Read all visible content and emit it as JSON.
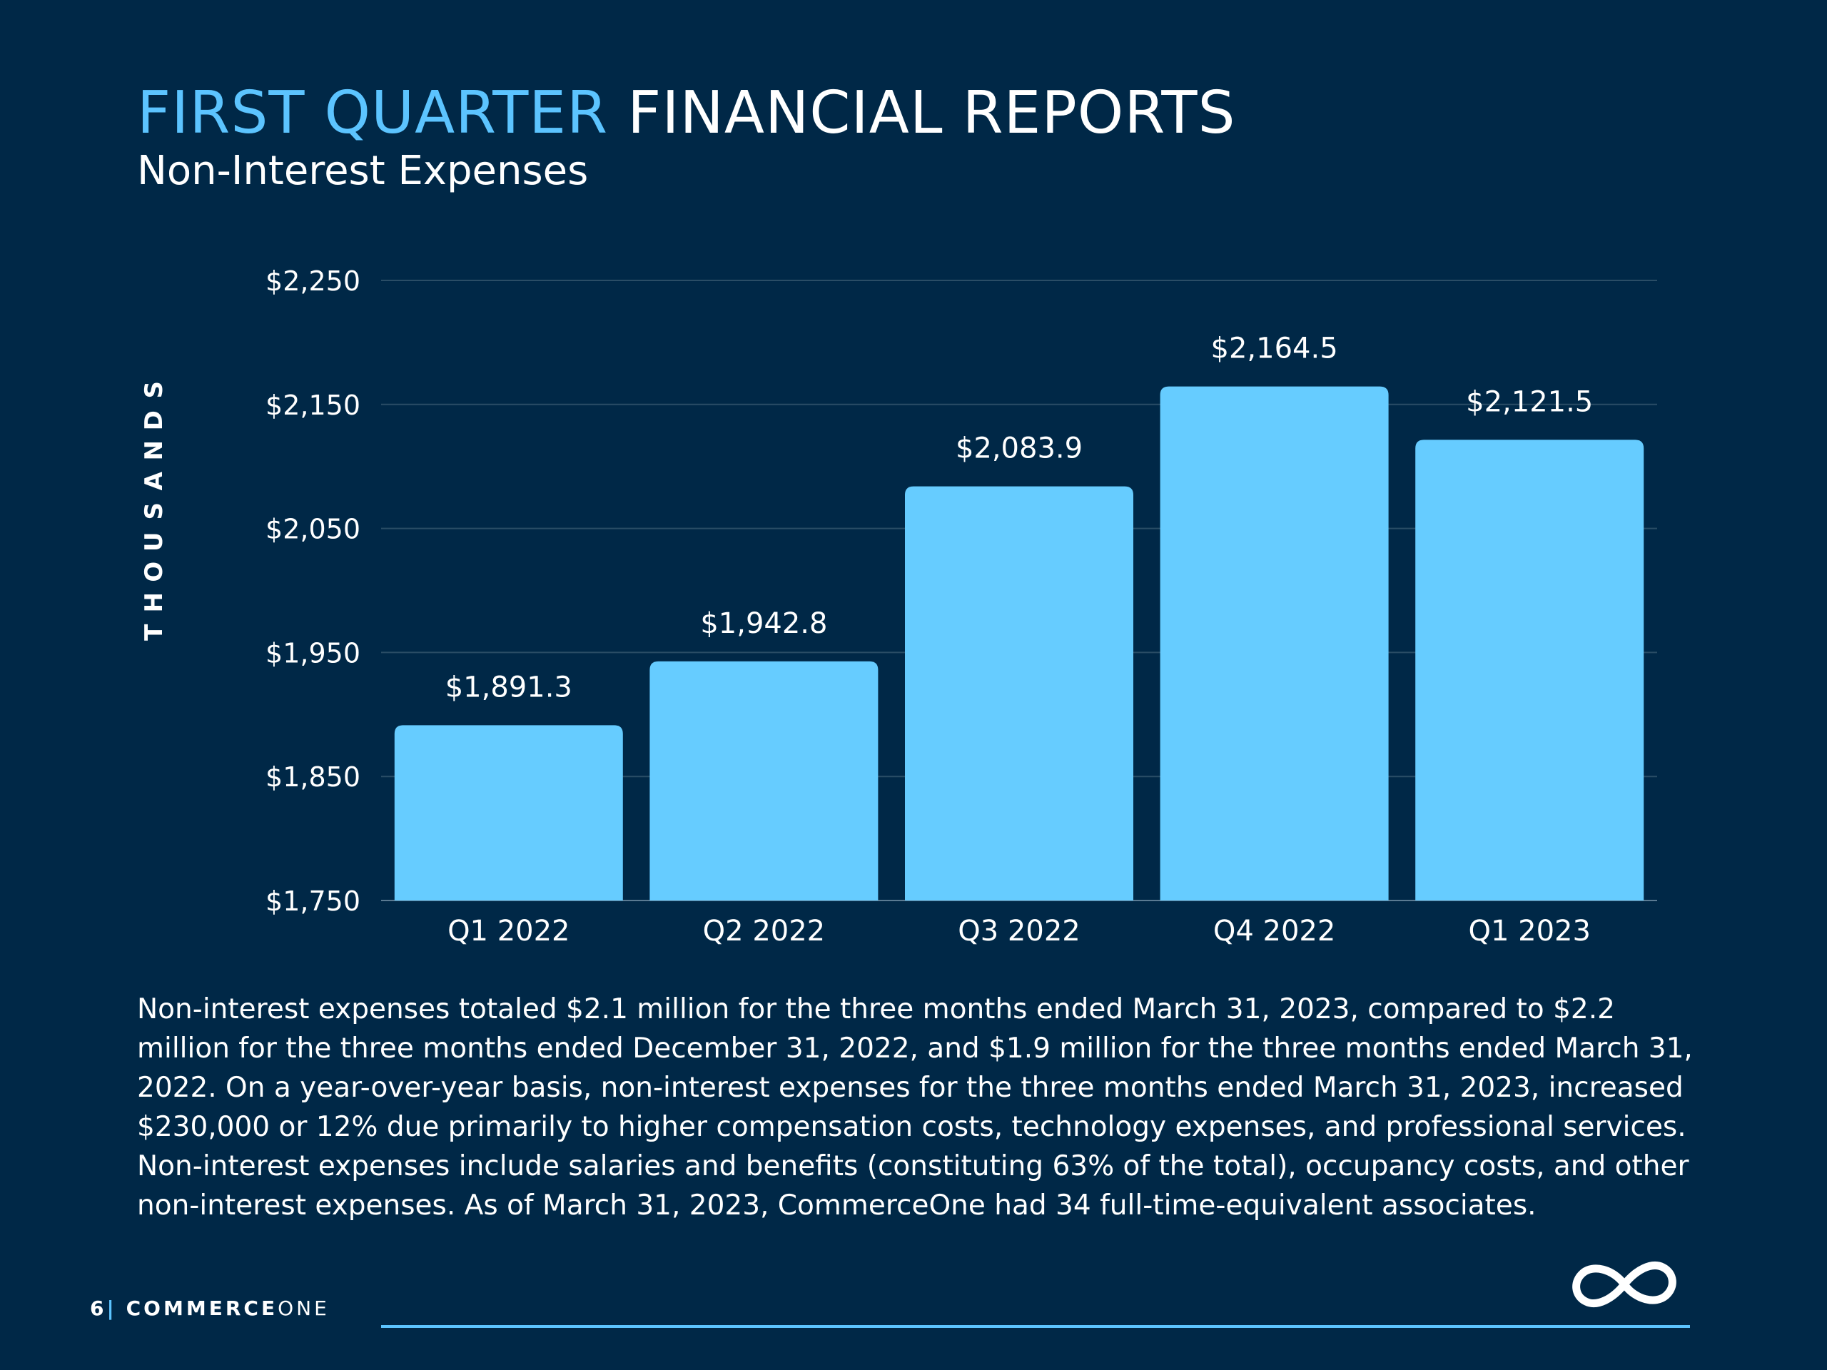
{
  "header": {
    "title_accent": "FIRST QUARTER",
    "title_main": "FINANCIAL REPORTS",
    "subtitle": "Non-Interest Expenses"
  },
  "chart_data": {
    "type": "bar",
    "categories": [
      "Q1 2022",
      "Q2 2022",
      "Q3 2022",
      "Q4 2022",
      "Q1 2023"
    ],
    "values": [
      1891.3,
      1942.8,
      2083.9,
      2164.5,
      2121.5
    ],
    "data_labels": [
      "$1,891.3",
      "$1,942.8",
      "$2,083.9",
      "$2,164.5",
      "$2,121.5"
    ],
    "ylabel": "THOUSANDS",
    "ylim": [
      1750,
      2250
    ],
    "yticks": [
      1750,
      1850,
      1950,
      2050,
      2150,
      2250
    ],
    "ytick_labels": [
      "$1,750",
      "$1,850",
      "$1,950",
      "$2,050",
      "$2,150",
      "$2,250"
    ],
    "grid": true,
    "legend": "none",
    "bar_color": "#66ccff"
  },
  "body": {
    "paragraph": "Non-interest expenses totaled $2.1 million for the three months ended March 31, 2023, compared to $2.2 million for the three months ended December 31, 2022, and $1.9 million for the three months ended March 31, 2022. On a year-over-year basis, non-interest expenses for the three months ended March 31, 2023, increased $230,000 or 12% due primarily to higher compensation costs, technology expenses, and professional services. Non-interest expenses include salaries and benefits (constituting 63% of the total), occupancy costs, and other non-interest expenses. As of March 31, 2023, CommerceOne had 34 full-time-equivalent associates."
  },
  "footer": {
    "page_number": "6",
    "separator": "|",
    "brand_bold": "COMMERCE",
    "brand_light": "ONE"
  },
  "logo": {
    "icon": "infinity-icon"
  },
  "colors": {
    "background": "#002847",
    "accent": "#5cc4ff",
    "bar": "#66ccff",
    "text": "#ffffff",
    "grid": "#2a4d66"
  }
}
